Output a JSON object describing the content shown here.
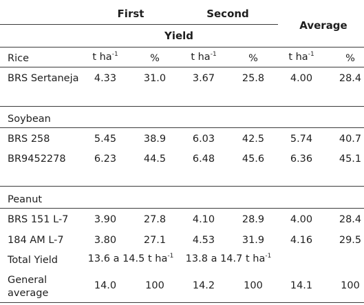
{
  "header": {
    "first": "First",
    "second": "Second",
    "average": "Average",
    "yield": "Yield"
  },
  "unit_header": {
    "tha_base": "t ha",
    "tha_exp": "-1",
    "pct": "%"
  },
  "groups": {
    "rice": {
      "label": "Rice",
      "rows": [
        {
          "name": "BRS Sertaneja",
          "first_t": "4.33",
          "first_pct": "31.0",
          "second_t": "3.67",
          "second_pct": "25.8",
          "avg_t": "4.00",
          "avg_pct": "28.4"
        }
      ]
    },
    "soybean": {
      "label": "Soybean",
      "rows": [
        {
          "name": "BRS 258",
          "first_t": "5.45",
          "first_pct": "38.9",
          "second_t": "6.03",
          "second_pct": "42.5",
          "avg_t": "5.74",
          "avg_pct": "40.7"
        },
        {
          "name": "BR9452278",
          "first_t": "6.23",
          "first_pct": "44.5",
          "second_t": "6.48",
          "second_pct": "45.6",
          "avg_t": "6.36",
          "avg_pct": "45.1"
        }
      ]
    },
    "peanut": {
      "label": "Peanut",
      "rows": [
        {
          "name": "BRS 151 L-7",
          "first_t": "3.90",
          "first_pct": "27.8",
          "second_t": "4.10",
          "second_pct": "28.9",
          "avg_t": "4.00",
          "avg_pct": "28.4"
        },
        {
          "name": "184 AM L-7",
          "first_t": "3.80",
          "first_pct": "27.1",
          "second_t": "4.53",
          "second_pct": "31.9",
          "avg_t": "4.16",
          "avg_pct": "29.5"
        }
      ]
    }
  },
  "total_yield": {
    "label": "Total Yield",
    "first_range": "13.6 a 14.5 t ha",
    "second_range": "13.8 a 14.7 t ha",
    "exp": "-1"
  },
  "general_average": {
    "label_line1": "General",
    "label_line2": "average",
    "first_t": "14.0",
    "first_pct": "100",
    "second_t": "14.2",
    "second_pct": "100",
    "avg_t": "14.1",
    "avg_pct": "100"
  }
}
